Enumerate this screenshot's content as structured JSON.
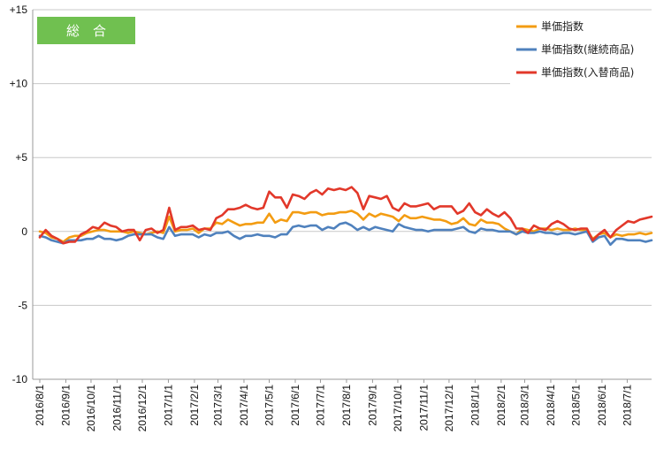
{
  "colors": {
    "badge_bg": "#70C050",
    "grid": "#c8c8c8",
    "axis": "#9a9a9a"
  },
  "badge": {
    "label": "総　合"
  },
  "chart_data": {
    "type": "line",
    "title": "",
    "xlabel": "",
    "ylabel": "",
    "ylim": [
      -10,
      15
    ],
    "y_ticks": [
      {
        "value": 15,
        "label": "+15"
      },
      {
        "value": 10,
        "label": "+10"
      },
      {
        "value": 5,
        "label": "+5"
      },
      {
        "value": 0,
        "label": "0"
      },
      {
        "value": -5,
        "label": "-5"
      },
      {
        "value": -10,
        "label": "-10"
      }
    ],
    "grid": true,
    "legend_position": "top-right",
    "x_tick_labels": [
      "2016/8/1",
      "2016/9/1",
      "2016/10/1",
      "2016/11/1",
      "2016/12/1",
      "2017/1/1",
      "2017/2/1",
      "2017/3/1",
      "2017/4/1",
      "2017/5/1",
      "2017/6/1",
      "2017/7/1",
      "2017/8/1",
      "2017/9/1",
      "2017/10/1",
      "2017/11/1",
      "2017/12/1",
      "2018/1/1",
      "2018/2/1",
      "2018/3/1",
      "2018/4/1",
      "2018/5/1",
      "2018/6/1",
      "2018/7/1"
    ],
    "x_tick_positions_weeks": [
      0,
      4.43,
      8.71,
      13.14,
      17.43,
      21.86,
      26.29,
      30.29,
      34.71,
      39,
      43.43,
      47.71,
      52.14,
      56.57,
      60.86,
      65.29,
      69.57,
      74,
      78.43,
      82.43,
      86.86,
      91.14,
      95.57,
      99.86
    ],
    "week_count": 105,
    "series": [
      {
        "name": "単価指数",
        "color": "#F39C12",
        "values": [
          0,
          -0.1,
          -0.4,
          -0.5,
          -0.7,
          -0.4,
          -0.3,
          -0.3,
          -0.1,
          0,
          0.1,
          0.1,
          0,
          0,
          0,
          -0.1,
          0,
          -0.1,
          -0.2,
          -0.1,
          0,
          -0.1,
          1,
          0,
          0.1,
          0.1,
          0.2,
          -0.1,
          0.2,
          0.2,
          0.6,
          0.5,
          0.8,
          0.6,
          0.4,
          0.5,
          0.5,
          0.6,
          0.6,
          1.2,
          0.6,
          0.8,
          0.7,
          1.3,
          1.3,
          1.2,
          1.3,
          1.3,
          1.1,
          1.2,
          1.2,
          1.3,
          1.3,
          1.4,
          1.2,
          0.8,
          1.2,
          1,
          1.2,
          1.1,
          1,
          0.7,
          1.1,
          0.9,
          0.9,
          1,
          0.9,
          0.8,
          0.8,
          0.7,
          0.5,
          0.6,
          0.9,
          0.5,
          0.4,
          0.8,
          0.6,
          0.6,
          0.5,
          0.2,
          0,
          -0.2,
          0.2,
          0.1,
          0,
          0.2,
          0.2,
          0.1,
          0.2,
          0.1,
          0.1,
          0.2,
          0.1,
          0.1,
          -0.5,
          -0.2,
          -0.1,
          -0.4,
          -0.2,
          -0.3,
          -0.2,
          -0.2,
          -0.1,
          -0.2,
          -0.1
        ]
      },
      {
        "name": "単価指数(継続商品)",
        "color": "#4F81BD",
        "values": [
          -0.3,
          -0.4,
          -0.6,
          -0.7,
          -0.8,
          -0.6,
          -0.6,
          -0.6,
          -0.5,
          -0.5,
          -0.3,
          -0.5,
          -0.5,
          -0.6,
          -0.5,
          -0.3,
          -0.2,
          -0.2,
          -0.2,
          -0.2,
          -0.4,
          -0.5,
          0.3,
          -0.3,
          -0.2,
          -0.2,
          -0.2,
          -0.4,
          -0.2,
          -0.3,
          -0.1,
          -0.1,
          0,
          -0.3,
          -0.5,
          -0.3,
          -0.3,
          -0.2,
          -0.3,
          -0.3,
          -0.4,
          -0.2,
          -0.2,
          0.3,
          0.4,
          0.3,
          0.4,
          0.4,
          0.1,
          0.3,
          0.2,
          0.5,
          0.6,
          0.4,
          0.1,
          0.3,
          0.1,
          0.3,
          0.2,
          0.1,
          0,
          0.5,
          0.3,
          0.2,
          0.1,
          0.1,
          0,
          0.1,
          0.1,
          0.1,
          0.1,
          0.2,
          0.3,
          0,
          -0.1,
          0.2,
          0.1,
          0.1,
          0,
          0,
          0,
          -0.2,
          0,
          -0.1,
          -0.1,
          0,
          -0.1,
          -0.1,
          -0.2,
          -0.1,
          -0.1,
          -0.2,
          -0.1,
          0,
          -0.7,
          -0.4,
          -0.3,
          -0.9,
          -0.5,
          -0.5,
          -0.6,
          -0.6,
          -0.6,
          -0.7,
          -0.6
        ]
      },
      {
        "name": "単価指数(入替商品)",
        "color": "#E2382A",
        "values": [
          -0.4,
          0.1,
          -0.3,
          -0.5,
          -0.8,
          -0.7,
          -0.7,
          -0.2,
          0,
          0.3,
          0.2,
          0.6,
          0.4,
          0.3,
          0,
          0.1,
          0.1,
          -0.6,
          0.1,
          0.2,
          -0.1,
          0.1,
          1.6,
          0.1,
          0.3,
          0.3,
          0.4,
          0.1,
          0.2,
          0.1,
          0.9,
          1.1,
          1.5,
          1.5,
          1.6,
          1.8,
          1.6,
          1.5,
          1.6,
          2.7,
          2.3,
          2.3,
          1.6,
          2.5,
          2.4,
          2.2,
          2.6,
          2.8,
          2.5,
          2.9,
          2.8,
          2.9,
          2.8,
          3,
          2.6,
          1.5,
          2.4,
          2.3,
          2.2,
          2.4,
          1.6,
          1.4,
          1.9,
          1.7,
          1.7,
          1.8,
          1.9,
          1.5,
          1.7,
          1.7,
          1.7,
          1.2,
          1.4,
          1.9,
          1.3,
          1.1,
          1.5,
          1.2,
          1,
          1.3,
          0.9,
          0.2,
          0.2,
          -0.1,
          0.4,
          0.2,
          0.1,
          0.5,
          0.7,
          0.5,
          0.2,
          0.1,
          0.2,
          0.2,
          -0.6,
          -0.2,
          0.1,
          -0.4,
          0.1,
          0.4,
          0.7,
          0.6,
          0.8,
          0.9,
          1
        ]
      }
    ]
  }
}
